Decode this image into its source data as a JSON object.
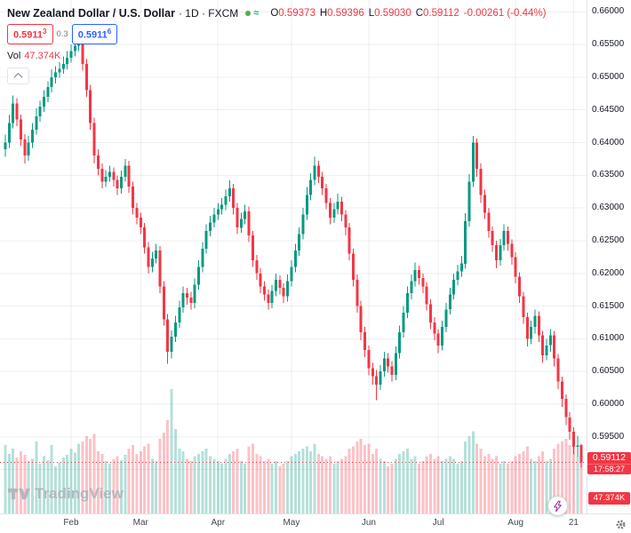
{
  "header": {
    "symbol": "New Zealand Dollar / U.S. Dollar",
    "subtitle": "· 1D · FXCM",
    "ohlc": [
      {
        "k": "O",
        "v": "0.59373"
      },
      {
        "k": "H",
        "v": "0.59396"
      },
      {
        "k": "L",
        "v": "0.59030"
      },
      {
        "k": "C",
        "v": "0.59112"
      }
    ],
    "change": "-0.00261 (-0.44%)"
  },
  "quotes": {
    "sell_main": "0.5911",
    "sell_sup": "3",
    "spread": "0.3",
    "buy_main": "0.5911",
    "buy_sup": "6"
  },
  "vol": {
    "label": "Vol",
    "value": "47.374K"
  },
  "price_tag": {
    "value": "0.59112",
    "countdown": "17:58:27"
  },
  "volume_tag": {
    "value": "47.374K"
  },
  "watermark": {
    "label": "TradingView"
  },
  "colors": {
    "up": "#089981",
    "down": "#F23645",
    "vol_up": "rgba(8,153,129,0.30)",
    "vol_down": "rgba(242,54,69,0.30)",
    "grid": "rgba(42,46,57,0.08)",
    "accent_blue": "#2962FF",
    "market_open": "#4CAF50",
    "wave_icon": "#26A69A",
    "lightning": "#9C27B0",
    "watermark": "#B2B5BE"
  },
  "chart_data": {
    "type": "candlestick",
    "symbol": "NZDUSD",
    "exchange": "FXCM",
    "interval": "1D",
    "last_price": 0.59112,
    "ylim": [
      0.5833,
      0.6618
    ],
    "grid": true,
    "y_ticks": [
      0.66,
      0.655,
      0.65,
      0.645,
      0.64,
      0.635,
      0.63,
      0.625,
      0.62,
      0.615,
      0.61,
      0.605,
      0.6,
      0.595,
      0.59
    ],
    "x_ticks": [
      {
        "label": "Feb",
        "i": 17
      },
      {
        "label": "Mar",
        "i": 35
      },
      {
        "label": "Apr",
        "i": 55
      },
      {
        "label": "May",
        "i": 74
      },
      {
        "label": "Jun",
        "i": 94
      },
      {
        "label": "Jul",
        "i": 112
      },
      {
        "label": "Aug",
        "i": 132
      },
      {
        "label": "21",
        "i": 147
      }
    ],
    "candles_format": [
      "open",
      "high",
      "low",
      "close",
      "volume_k"
    ],
    "candles": [
      [
        0.639,
        0.6412,
        0.6378,
        0.64,
        55
      ],
      [
        0.64,
        0.6442,
        0.6392,
        0.643,
        48
      ],
      [
        0.643,
        0.6472,
        0.6422,
        0.646,
        52
      ],
      [
        0.646,
        0.6468,
        0.6425,
        0.6435,
        45
      ],
      [
        0.6435,
        0.6443,
        0.6395,
        0.6405,
        50
      ],
      [
        0.6405,
        0.6413,
        0.6368,
        0.638,
        47
      ],
      [
        0.638,
        0.641,
        0.6372,
        0.64,
        42
      ],
      [
        0.64,
        0.643,
        0.6392,
        0.642,
        44
      ],
      [
        0.642,
        0.6452,
        0.6412,
        0.644,
        58
      ],
      [
        0.644,
        0.6464,
        0.6432,
        0.6455,
        40
      ],
      [
        0.6455,
        0.648,
        0.6447,
        0.647,
        46
      ],
      [
        0.647,
        0.6494,
        0.6462,
        0.6485,
        43
      ],
      [
        0.6485,
        0.6512,
        0.6477,
        0.65,
        55
      ],
      [
        0.65,
        0.6517,
        0.649,
        0.6507,
        38
      ],
      [
        0.6507,
        0.6523,
        0.6499,
        0.6513,
        41
      ],
      [
        0.6513,
        0.6532,
        0.6505,
        0.652,
        45
      ],
      [
        0.652,
        0.654,
        0.6512,
        0.653,
        47
      ],
      [
        0.653,
        0.655,
        0.6522,
        0.654,
        52
      ],
      [
        0.654,
        0.6558,
        0.6532,
        0.6548,
        49
      ],
      [
        0.6548,
        0.6565,
        0.654,
        0.6555,
        56
      ],
      [
        0.6555,
        0.656,
        0.651,
        0.652,
        58
      ],
      [
        0.652,
        0.6528,
        0.647,
        0.648,
        62
      ],
      [
        0.648,
        0.6488,
        0.642,
        0.643,
        60
      ],
      [
        0.643,
        0.6438,
        0.6368,
        0.638,
        64
      ],
      [
        0.638,
        0.639,
        0.635,
        0.636,
        50
      ],
      [
        0.636,
        0.6368,
        0.633,
        0.634,
        48
      ],
      [
        0.634,
        0.6358,
        0.6332,
        0.6348,
        42
      ],
      [
        0.6348,
        0.6365,
        0.634,
        0.6355,
        40
      ],
      [
        0.6355,
        0.6362,
        0.6333,
        0.6343,
        44
      ],
      [
        0.6343,
        0.635,
        0.632,
        0.633,
        46
      ],
      [
        0.633,
        0.6357,
        0.6322,
        0.6348,
        43
      ],
      [
        0.6348,
        0.6375,
        0.634,
        0.6365,
        47
      ],
      [
        0.6365,
        0.6372,
        0.6323,
        0.6333,
        52
      ],
      [
        0.6333,
        0.634,
        0.629,
        0.63,
        55
      ],
      [
        0.63,
        0.6308,
        0.6275,
        0.6285,
        48
      ],
      [
        0.6285,
        0.6293,
        0.626,
        0.627,
        50
      ],
      [
        0.627,
        0.6277,
        0.623,
        0.624,
        54
      ],
      [
        0.624,
        0.6248,
        0.62,
        0.621,
        56
      ],
      [
        0.621,
        0.6233,
        0.6202,
        0.6223,
        44
      ],
      [
        0.6223,
        0.6245,
        0.6215,
        0.6235,
        42
      ],
      [
        0.6235,
        0.6242,
        0.617,
        0.618,
        60
      ],
      [
        0.618,
        0.6188,
        0.612,
        0.613,
        65
      ],
      [
        0.613,
        0.6138,
        0.6062,
        0.608,
        75
      ],
      [
        0.608,
        0.6113,
        0.607,
        0.6103,
        100
      ],
      [
        0.6103,
        0.6135,
        0.6095,
        0.6125,
        68
      ],
      [
        0.6125,
        0.6158,
        0.6117,
        0.6148,
        52
      ],
      [
        0.6148,
        0.618,
        0.614,
        0.617,
        50
      ],
      [
        0.617,
        0.6178,
        0.6152,
        0.6163,
        44
      ],
      [
        0.6163,
        0.6172,
        0.6145,
        0.6155,
        42
      ],
      [
        0.6155,
        0.6192,
        0.6147,
        0.6183,
        46
      ],
      [
        0.6183,
        0.622,
        0.6175,
        0.621,
        48
      ],
      [
        0.621,
        0.6248,
        0.6202,
        0.6238,
        50
      ],
      [
        0.6238,
        0.6275,
        0.623,
        0.6265,
        52
      ],
      [
        0.6265,
        0.6288,
        0.6257,
        0.6278,
        46
      ],
      [
        0.6278,
        0.63,
        0.627,
        0.629,
        44
      ],
      [
        0.629,
        0.6308,
        0.6282,
        0.6298,
        42
      ],
      [
        0.6298,
        0.6315,
        0.629,
        0.6305,
        40
      ],
      [
        0.6305,
        0.6328,
        0.6297,
        0.6318,
        44
      ],
      [
        0.6318,
        0.6342,
        0.631,
        0.633,
        48
      ],
      [
        0.633,
        0.6337,
        0.629,
        0.63,
        50
      ],
      [
        0.63,
        0.6308,
        0.626,
        0.627,
        52
      ],
      [
        0.627,
        0.6293,
        0.6262,
        0.6283,
        42
      ],
      [
        0.6283,
        0.6305,
        0.6275,
        0.6295,
        40
      ],
      [
        0.6295,
        0.6302,
        0.6248,
        0.6258,
        54
      ],
      [
        0.6258,
        0.6265,
        0.621,
        0.622,
        56
      ],
      [
        0.622,
        0.6228,
        0.619,
        0.62,
        48
      ],
      [
        0.62,
        0.6208,
        0.617,
        0.618,
        46
      ],
      [
        0.618,
        0.6188,
        0.6158,
        0.6168,
        42
      ],
      [
        0.6168,
        0.6175,
        0.6145,
        0.6155,
        44
      ],
      [
        0.6155,
        0.6182,
        0.6147,
        0.6173,
        40
      ],
      [
        0.6173,
        0.62,
        0.6165,
        0.619,
        42
      ],
      [
        0.619,
        0.6197,
        0.6168,
        0.6178,
        38
      ],
      [
        0.6178,
        0.6185,
        0.6155,
        0.6165,
        40
      ],
      [
        0.6165,
        0.6198,
        0.6157,
        0.6188,
        42
      ],
      [
        0.6188,
        0.622,
        0.618,
        0.621,
        46
      ],
      [
        0.621,
        0.6245,
        0.6202,
        0.6235,
        48
      ],
      [
        0.6235,
        0.627,
        0.6227,
        0.626,
        50
      ],
      [
        0.626,
        0.63,
        0.6252,
        0.629,
        52
      ],
      [
        0.629,
        0.6332,
        0.6282,
        0.632,
        54
      ],
      [
        0.632,
        0.6353,
        0.6312,
        0.6343,
        50
      ],
      [
        0.6343,
        0.6378,
        0.6335,
        0.6365,
        56
      ],
      [
        0.6365,
        0.6372,
        0.6338,
        0.6348,
        48
      ],
      [
        0.6348,
        0.6355,
        0.632,
        0.633,
        46
      ],
      [
        0.633,
        0.6337,
        0.6298,
        0.6308,
        44
      ],
      [
        0.6308,
        0.6315,
        0.6275,
        0.6285,
        46
      ],
      [
        0.6285,
        0.6308,
        0.6277,
        0.6298,
        40
      ],
      [
        0.6298,
        0.6322,
        0.629,
        0.631,
        42
      ],
      [
        0.631,
        0.6317,
        0.628,
        0.629,
        44
      ],
      [
        0.629,
        0.6297,
        0.6258,
        0.627,
        46
      ],
      [
        0.627,
        0.6277,
        0.622,
        0.623,
        52
      ],
      [
        0.623,
        0.6238,
        0.618,
        0.619,
        54
      ],
      [
        0.619,
        0.6198,
        0.614,
        0.615,
        58
      ],
      [
        0.615,
        0.6158,
        0.6098,
        0.611,
        60
      ],
      [
        0.611,
        0.6118,
        0.6072,
        0.6083,
        55
      ],
      [
        0.6083,
        0.609,
        0.6044,
        0.6055,
        56
      ],
      [
        0.6055,
        0.6063,
        0.603,
        0.6043,
        48
      ],
      [
        0.6043,
        0.6052,
        0.6006,
        0.603,
        52
      ],
      [
        0.603,
        0.606,
        0.6022,
        0.605,
        44
      ],
      [
        0.605,
        0.608,
        0.6042,
        0.607,
        42
      ],
      [
        0.607,
        0.6078,
        0.6048,
        0.6058,
        38
      ],
      [
        0.6058,
        0.6066,
        0.6035,
        0.6045,
        40
      ],
      [
        0.6045,
        0.6088,
        0.6037,
        0.6078,
        44
      ],
      [
        0.6078,
        0.612,
        0.607,
        0.611,
        48
      ],
      [
        0.611,
        0.615,
        0.6102,
        0.614,
        50
      ],
      [
        0.614,
        0.618,
        0.6132,
        0.617,
        52
      ],
      [
        0.617,
        0.6198,
        0.616,
        0.6188,
        44
      ],
      [
        0.6188,
        0.6217,
        0.618,
        0.6205,
        46
      ],
      [
        0.6205,
        0.6212,
        0.6183,
        0.6193,
        40
      ],
      [
        0.6193,
        0.62,
        0.617,
        0.618,
        42
      ],
      [
        0.618,
        0.6187,
        0.6143,
        0.6153,
        46
      ],
      [
        0.6153,
        0.616,
        0.6115,
        0.6125,
        48
      ],
      [
        0.6125,
        0.6133,
        0.6098,
        0.6108,
        44
      ],
      [
        0.6108,
        0.6115,
        0.6078,
        0.609,
        46
      ],
      [
        0.609,
        0.6128,
        0.6082,
        0.6118,
        42
      ],
      [
        0.6118,
        0.6155,
        0.611,
        0.6145,
        44
      ],
      [
        0.6145,
        0.6178,
        0.6137,
        0.6168,
        46
      ],
      [
        0.6168,
        0.62,
        0.616,
        0.619,
        44
      ],
      [
        0.619,
        0.6213,
        0.6182,
        0.6203,
        40
      ],
      [
        0.6203,
        0.6227,
        0.6195,
        0.6215,
        42
      ],
      [
        0.6215,
        0.6292,
        0.6207,
        0.628,
        58
      ],
      [
        0.628,
        0.6352,
        0.6272,
        0.634,
        62
      ],
      [
        0.634,
        0.641,
        0.6332,
        0.64,
        66
      ],
      [
        0.64,
        0.6406,
        0.6348,
        0.636,
        56
      ],
      [
        0.636,
        0.6368,
        0.6308,
        0.632,
        52
      ],
      [
        0.632,
        0.6328,
        0.6283,
        0.6293,
        46
      ],
      [
        0.6293,
        0.63,
        0.6255,
        0.6265,
        48
      ],
      [
        0.6265,
        0.6272,
        0.6233,
        0.6243,
        44
      ],
      [
        0.6243,
        0.625,
        0.6208,
        0.622,
        46
      ],
      [
        0.622,
        0.6253,
        0.6212,
        0.6243,
        40
      ],
      [
        0.6243,
        0.6275,
        0.6235,
        0.6265,
        42
      ],
      [
        0.6265,
        0.6272,
        0.6235,
        0.6245,
        40
      ],
      [
        0.6245,
        0.6252,
        0.6213,
        0.6225,
        42
      ],
      [
        0.6225,
        0.6232,
        0.6185,
        0.6195,
        46
      ],
      [
        0.6195,
        0.6202,
        0.6155,
        0.6165,
        48
      ],
      [
        0.6165,
        0.6172,
        0.6123,
        0.6133,
        50
      ],
      [
        0.6133,
        0.614,
        0.6088,
        0.61,
        54
      ],
      [
        0.61,
        0.6128,
        0.6092,
        0.6118,
        44
      ],
      [
        0.6118,
        0.6145,
        0.6108,
        0.6135,
        42
      ],
      [
        0.6135,
        0.6142,
        0.6095,
        0.6105,
        46
      ],
      [
        0.6105,
        0.6112,
        0.6063,
        0.6075,
        50
      ],
      [
        0.6075,
        0.61,
        0.6067,
        0.609,
        42
      ],
      [
        0.609,
        0.6115,
        0.608,
        0.6105,
        44
      ],
      [
        0.6105,
        0.6112,
        0.6058,
        0.607,
        52
      ],
      [
        0.607,
        0.6077,
        0.6023,
        0.6035,
        56
      ],
      [
        0.6035,
        0.6042,
        0.5996,
        0.6008,
        58
      ],
      [
        0.6008,
        0.6015,
        0.5968,
        0.598,
        60
      ],
      [
        0.598,
        0.5988,
        0.5946,
        0.5958,
        55
      ],
      [
        0.5958,
        0.5965,
        0.5923,
        0.5935,
        58
      ],
      [
        0.5935,
        0.5952,
        0.592,
        0.5937,
        46
      ],
      [
        0.59373,
        0.59396,
        0.5903,
        0.59112,
        47.374
      ]
    ]
  }
}
